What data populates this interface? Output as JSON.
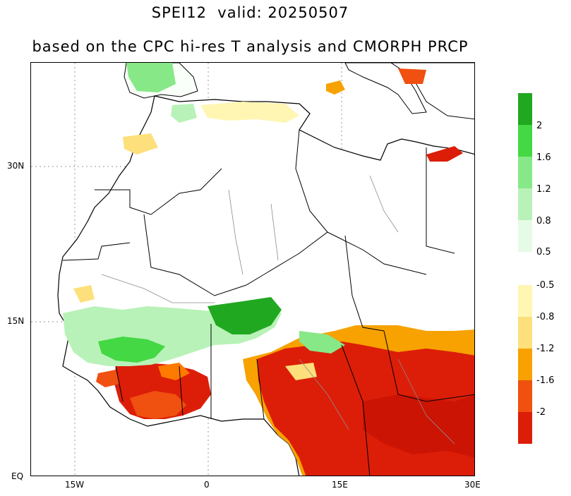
{
  "title": {
    "line1": "SPEI12  valid: 20250507",
    "line2": "based on the CPC hi-res T analysis and CMORPH PRCP"
  },
  "map": {
    "lon_ticks": [
      "15W",
      "0",
      "15E",
      "30E"
    ],
    "lat_ticks": [
      "30N",
      "15N",
      "EQ"
    ]
  },
  "legend": {
    "wet": [
      {
        "color": "#21a821",
        "label": "2"
      },
      {
        "color": "#44d844",
        "label": "1.6"
      },
      {
        "color": "#87e887",
        "label": "1.2"
      },
      {
        "color": "#b8f2b8",
        "label": "0.8"
      },
      {
        "color": "#e6fbe6",
        "label": "0.5"
      }
    ],
    "dry": [
      {
        "color": "#fff6b3",
        "label": "-0.5"
      },
      {
        "color": "#fde07b",
        "label": "-0.8"
      },
      {
        "color": "#f7a200",
        "label": "-1.2"
      },
      {
        "color": "#f05010",
        "label": "-1.6"
      },
      {
        "color": "#dc1e08",
        "label": "-2"
      }
    ]
  }
}
